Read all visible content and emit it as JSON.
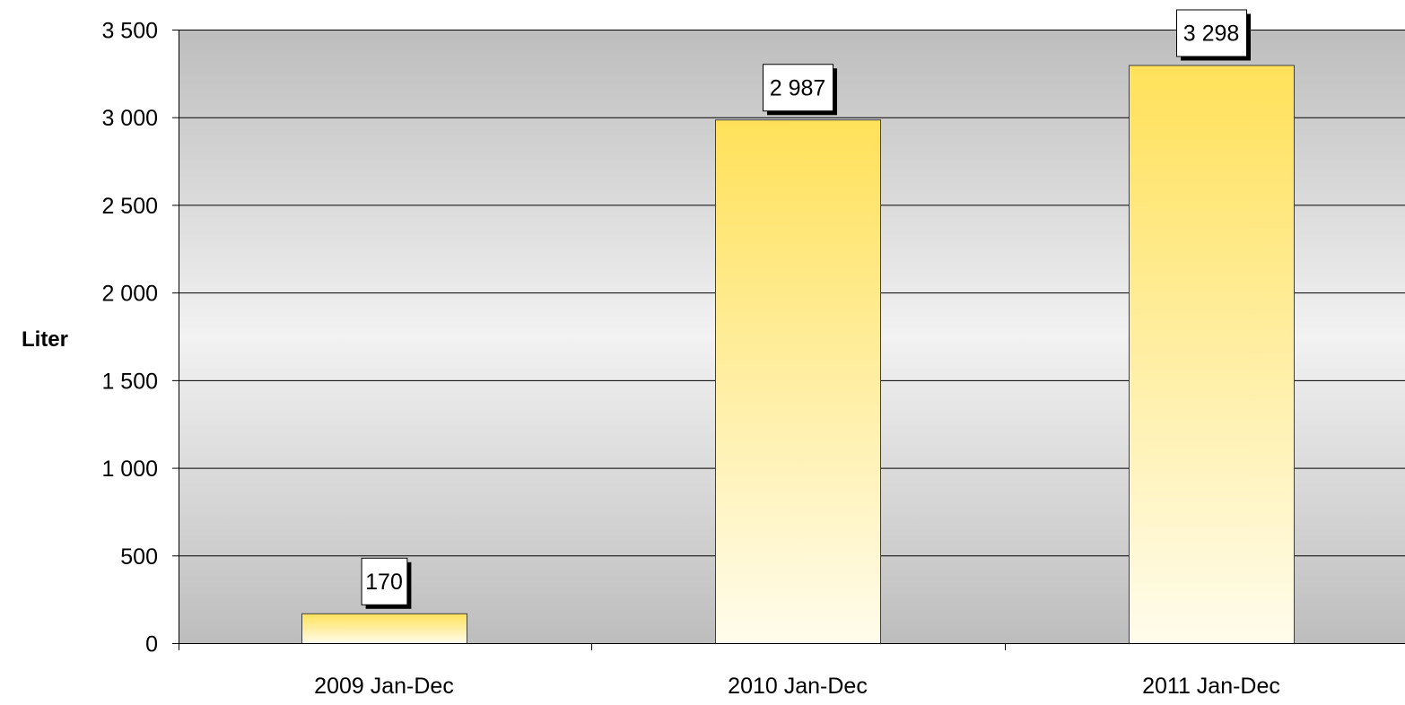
{
  "chart_data": {
    "type": "bar",
    "categories": [
      "2009 Jan-Dec",
      "2010 Jan-Dec",
      "2011 Jan-Dec"
    ],
    "values": [
      170,
      2987,
      3298
    ],
    "value_labels": [
      "170",
      "2 987",
      "3 298"
    ],
    "ylabel": "Liter",
    "xlabel": "",
    "title": "",
    "ylim": [
      0,
      3500
    ],
    "yticks": [
      0,
      500,
      1000,
      1500,
      2000,
      2500,
      3000,
      3500
    ],
    "ytick_labels": [
      "0",
      "500",
      "1 000",
      "1 500",
      "2 000",
      "2 500",
      "3 000",
      "3 500"
    ],
    "grid": true,
    "legend": "none",
    "colors": {
      "bar_top": "#ffe15a",
      "bar_bottom": "#fffcec",
      "bar_border": "#404040",
      "plot_edge": "#bdbdbd",
      "plot_center": "#f2f2f2",
      "gridline": "#000000",
      "label_box": "#ffffff",
      "label_shadow": "#000000"
    }
  }
}
